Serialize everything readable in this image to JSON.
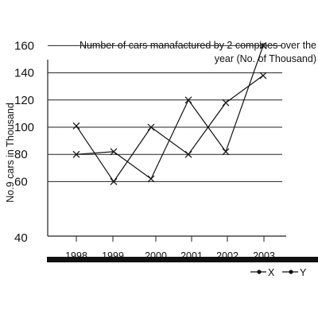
{
  "chart_data": {
    "type": "line",
    "title_lines": [
      "Number of cars manafactured by 2 compines over the",
      "year (No. of Thousand)"
    ],
    "xlabel": "",
    "ylabel": "No.9 cars in Thousand",
    "ylim": [
      40,
      170
    ],
    "yticks": [
      40,
      60,
      80,
      100,
      120,
      140,
      160
    ],
    "categories": [
      "1998",
      "1999",
      "2000",
      "2001",
      "2002",
      "2003"
    ],
    "grid": "horizontal",
    "legend_position": "bottom-right",
    "series": [
      {
        "name": "X",
        "points": [
          [
            1998,
            80
          ],
          [
            1999,
            82
          ],
          [
            2000,
            62
          ],
          [
            2001,
            120
          ],
          [
            2002,
            82
          ],
          [
            2003,
            160
          ]
        ]
      },
      {
        "name": "Y",
        "points": [
          [
            1998,
            101
          ],
          [
            1999,
            60
          ],
          [
            2000,
            100
          ],
          [
            2001,
            80
          ],
          [
            2002,
            118
          ],
          [
            2003,
            138
          ]
        ]
      }
    ]
  }
}
